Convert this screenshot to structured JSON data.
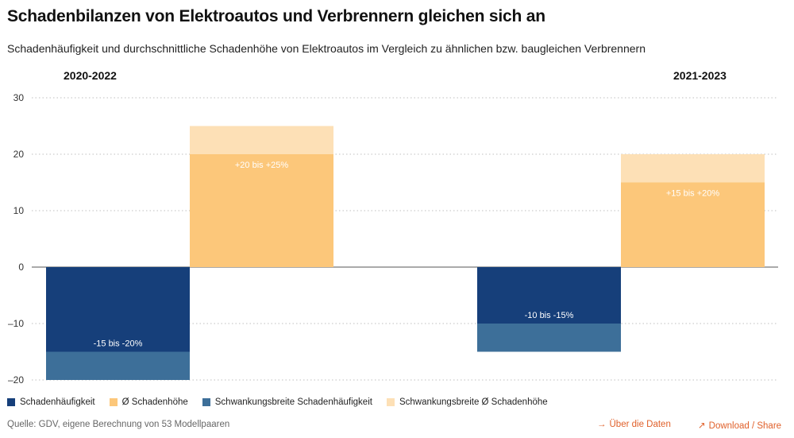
{
  "title": "Schadenbilanzen von Elektroautos und Verbrennern gleichen sich an",
  "subtitle": "Schadenhäufigkeit und durchschnittliche Schadenhöhe von Elektroautos im Vergleich zu ähnlichen bzw. baugleichen Verbrennern",
  "chart_data": {
    "type": "bar",
    "categories": [
      "2020-2022",
      "2021-2023"
    ],
    "series": [
      {
        "name": "Schadenhäufigkeit",
        "values": [
          -15,
          -10
        ],
        "color": "#163f7a"
      },
      {
        "name": "Schwankungsbreite Schadenhäufigkeit",
        "from": [
          -15,
          -10
        ],
        "to": [
          -20,
          -15
        ],
        "color": "#3d6f99"
      },
      {
        "name": "Ø Schadenhöhe",
        "values": [
          20,
          15
        ],
        "color": "#fcc77a"
      },
      {
        "name": "Schwankungsbreite Ø Schadenhöhe",
        "from": [
          20,
          15
        ],
        "to": [
          25,
          20
        ],
        "color": "#fde0b6"
      }
    ],
    "data_labels": {
      "freq": [
        "-15 bis -20%",
        "-10 bis -15%"
      ],
      "amount": [
        "+20 bis +25%",
        "+15 bis +20%"
      ]
    },
    "yticks": [
      "30",
      "20",
      "10",
      "0",
      "–10",
      "–20"
    ],
    "ylim": [
      -20,
      30
    ],
    "grid": true
  },
  "legend": [
    {
      "label": "Schadenhäufigkeit",
      "color": "#163f7a"
    },
    {
      "label": "Ø Schadenhöhe",
      "color": "#fcc77a"
    },
    {
      "label": "Schwankungsbreite Schadenhäufigkeit",
      "color": "#3d6f99"
    },
    {
      "label": "Schwankungsbreite Ø Schadenhöhe",
      "color": "#fde0b6"
    }
  ],
  "footer": {
    "source": "Quelle: GDV, eigene Berechnung von 53 Modellpaaren",
    "data_link": "Über die Daten",
    "share_link": "Download / Share",
    "link_color": "#e0602a"
  }
}
